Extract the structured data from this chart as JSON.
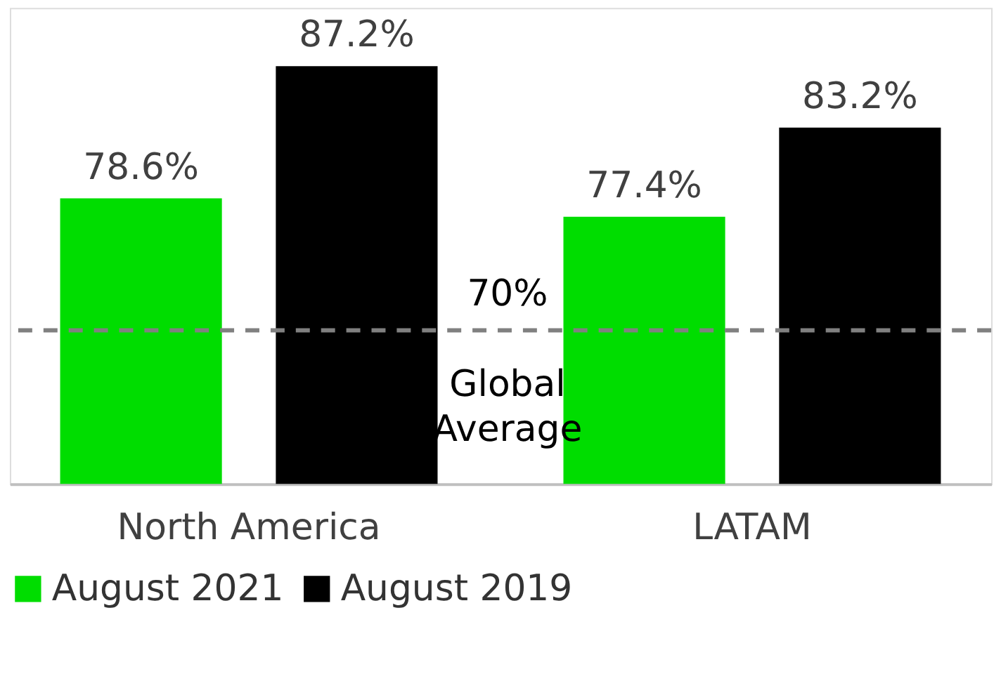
{
  "chart_data": {
    "type": "bar",
    "categories": [
      "North America",
      "LATAM"
    ],
    "series": [
      {
        "name": "August 2021",
        "color": "#00dd00",
        "values": [
          78.6,
          77.4
        ],
        "value_labels": [
          "78.6%",
          "77.4%"
        ]
      },
      {
        "name": "August 2019",
        "color": "#000000",
        "values": [
          87.2,
          83.2
        ],
        "value_labels": [
          "87.2%",
          "83.2%"
        ]
      }
    ],
    "ylim": [
      60,
      91
    ],
    "tick_labels": "x",
    "legend": "bottom",
    "ref_lines": [
      {
        "axis": "y",
        "value": 70,
        "label": "70%",
        "color": "#808080",
        "line_style": "dashed"
      }
    ],
    "annotations": [
      "Global Average"
    ]
  }
}
